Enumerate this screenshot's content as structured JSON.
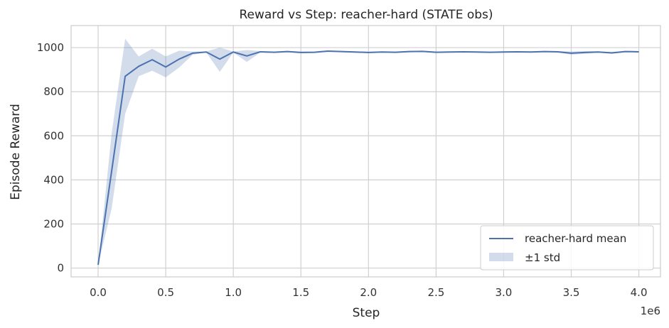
{
  "chart_data": {
    "type": "line",
    "title": "Reward vs Step: reacher-hard (STATE obs)",
    "xlabel": "Step",
    "ylabel": "Episode Reward",
    "x_multiplier_label": "1e6",
    "xlim": [
      -0.2,
      4.16
    ],
    "ylim": [
      -40,
      1100
    ],
    "x_ticks": [
      0.0,
      0.5,
      1.0,
      1.5,
      2.0,
      2.5,
      3.0,
      3.5,
      4.0
    ],
    "x_tick_labels": [
      "0.0",
      "0.5",
      "1.0",
      "1.5",
      "2.0",
      "2.5",
      "3.0",
      "3.5",
      "4.0"
    ],
    "y_ticks": [
      0,
      200,
      400,
      600,
      800,
      1000
    ],
    "y_tick_labels": [
      "0",
      "200",
      "400",
      "600",
      "800",
      "1000"
    ],
    "grid": true,
    "legend_position": "bottom-right",
    "colors": {
      "line": "#4c72b0",
      "band": "#4c72b0",
      "grid": "#d0d0d0",
      "frame": "#cccccc"
    },
    "x": [
      0.0,
      0.1,
      0.2,
      0.3,
      0.4,
      0.5,
      0.6,
      0.7,
      0.8,
      0.9,
      1.0,
      1.1,
      1.2,
      1.3,
      1.4,
      1.5,
      1.6,
      1.7,
      1.8,
      1.9,
      2.0,
      2.1,
      2.2,
      2.3,
      2.4,
      2.5,
      2.6,
      2.7,
      2.8,
      2.9,
      3.0,
      3.1,
      3.2,
      3.3,
      3.4,
      3.5,
      3.6,
      3.7,
      3.8,
      3.9,
      4.0
    ],
    "series": [
      {
        "name": "reacher-hard mean",
        "values": [
          15,
          440,
          870,
          915,
          945,
          912,
          948,
          975,
          980,
          948,
          980,
          962,
          981,
          979,
          982,
          978,
          979,
          984,
          982,
          980,
          978,
          980,
          979,
          982,
          983,
          979,
          980,
          981,
          980,
          979,
          980,
          981,
          980,
          982,
          981,
          975,
          978,
          980,
          976,
          982,
          981
        ]
      }
    ],
    "band": {
      "name": "±1 std",
      "lower": [
        15,
        270,
        700,
        870,
        895,
        865,
        910,
        968,
        978,
        890,
        978,
        935,
        978,
        976,
        979,
        974,
        976,
        981,
        979,
        977,
        975,
        977,
        976,
        979,
        980,
        976,
        977,
        978,
        977,
        976,
        977,
        978,
        977,
        979,
        978,
        968,
        972,
        977,
        972,
        979,
        978
      ],
      "upper": [
        15,
        610,
        1040,
        960,
        995,
        960,
        986,
        982,
        982,
        1000,
        982,
        989,
        984,
        982,
        985,
        982,
        982,
        987,
        985,
        983,
        981,
        983,
        982,
        985,
        986,
        982,
        983,
        984,
        983,
        982,
        983,
        984,
        983,
        985,
        984,
        982,
        984,
        983,
        980,
        985,
        984
      ]
    }
  }
}
